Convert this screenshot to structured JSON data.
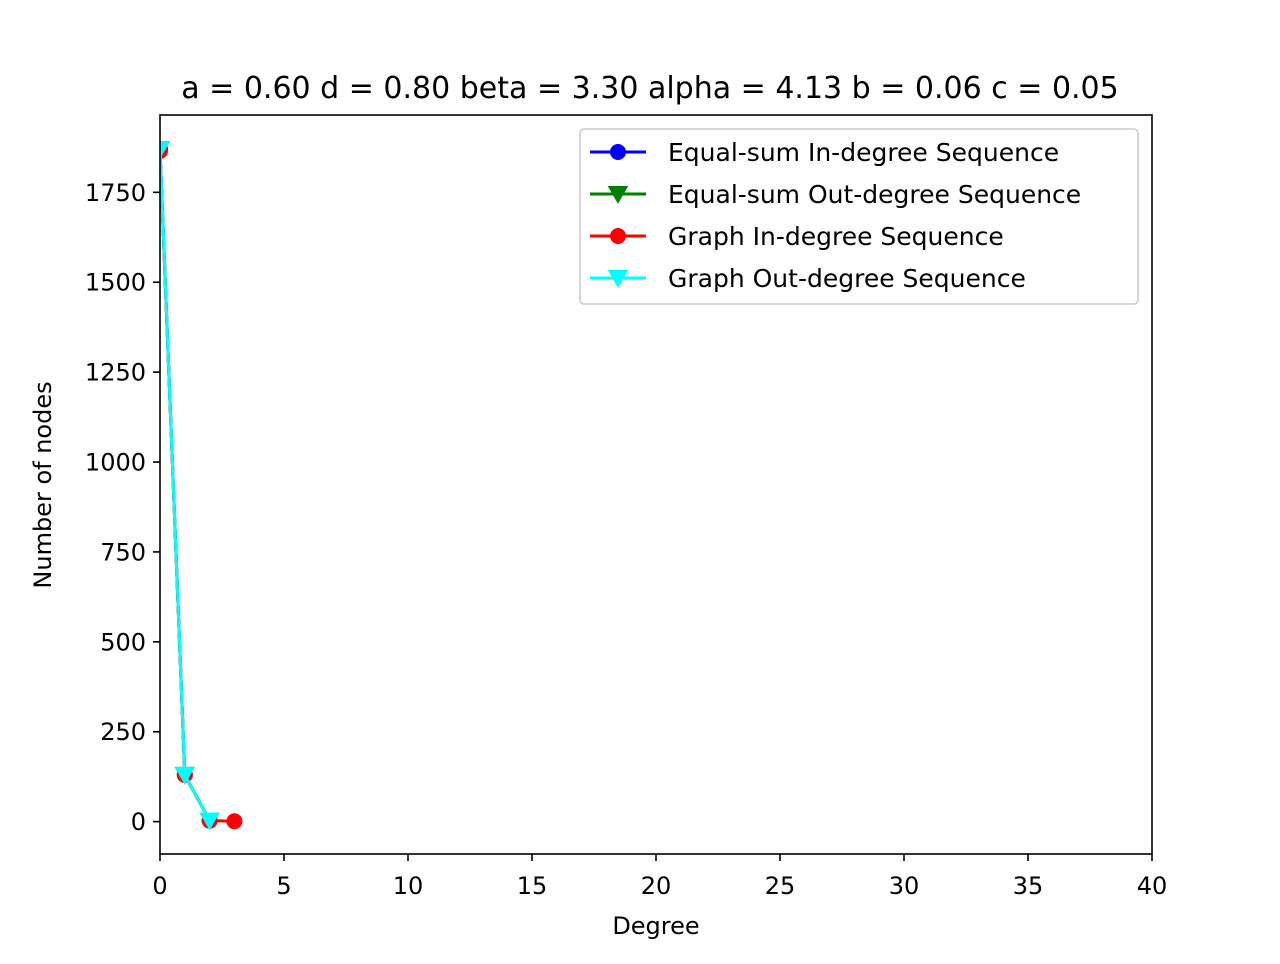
{
  "chart_data": {
    "type": "line",
    "title": "a = 0.60 d = 0.80 beta = 3.30 alpha = 4.13 b = 0.06 c = 0.05",
    "xlabel": "Degree",
    "ylabel": "Number of nodes",
    "xlim": [
      0,
      40
    ],
    "ylim": [
      -90,
      1965
    ],
    "xticks": [
      0,
      5,
      10,
      15,
      20,
      25,
      30,
      35,
      40
    ],
    "yticks": [
      0,
      250,
      500,
      750,
      1000,
      1250,
      1500,
      1750
    ],
    "grid": false,
    "legend_position": "top-right",
    "series": [
      {
        "name": "Equal-sum In-degree Sequence",
        "color": "#0000ff",
        "marker": "circle",
        "x": [
          0,
          1,
          2
        ],
        "y": [
          1870,
          130,
          3
        ]
      },
      {
        "name": "Equal-sum Out-degree Sequence",
        "color": "#008000",
        "marker": "triangle-down",
        "x": [
          0,
          1,
          2
        ],
        "y": [
          1870,
          130,
          3
        ]
      },
      {
        "name": "Graph In-degree Sequence",
        "color": "#ff0000",
        "marker": "circle",
        "x": [
          0,
          1,
          2,
          3
        ],
        "y": [
          1865,
          130,
          3,
          1
        ]
      },
      {
        "name": "Graph Out-degree Sequence",
        "color": "#00ffff",
        "marker": "triangle-down",
        "x": [
          0,
          1,
          2
        ],
        "y": [
          1870,
          130,
          3
        ]
      }
    ]
  }
}
